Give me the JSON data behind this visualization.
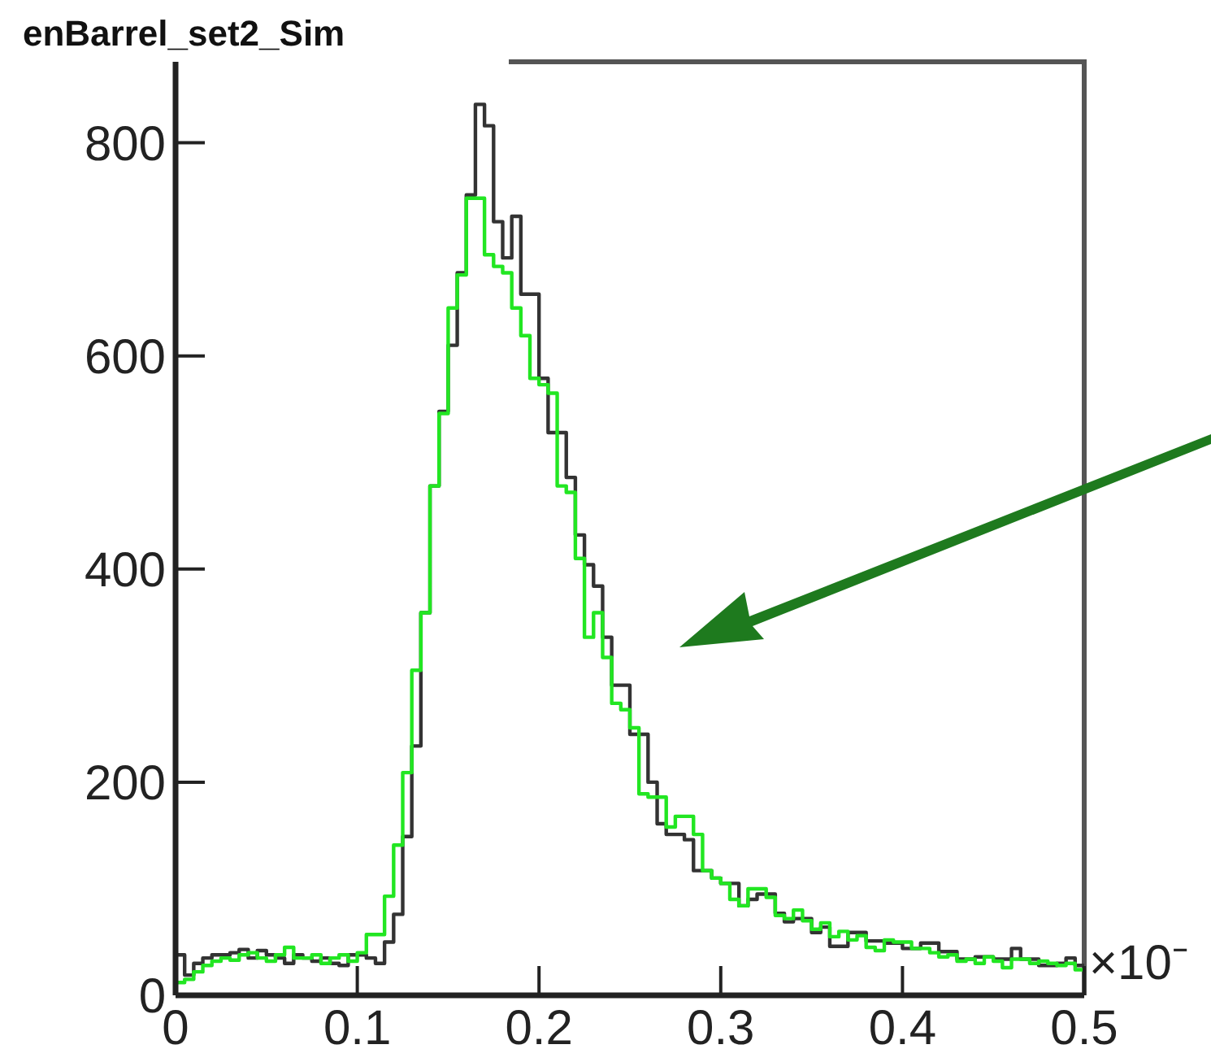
{
  "chart_data": {
    "type": "histogram",
    "title": "enBarrel_set2_Sim",
    "annotations": [
      "×10⁻"
    ],
    "bins": [
      0,
      0.005,
      0.01,
      0.015,
      0.02,
      0.025,
      0.03,
      0.035,
      0.04,
      0.045,
      0.05,
      0.055,
      0.06,
      0.065,
      0.07,
      0.075,
      0.08,
      0.085,
      0.09,
      0.095,
      0.1,
      0.105,
      0.11,
      0.115,
      0.12,
      0.125,
      0.13,
      0.135,
      0.14,
      0.145,
      0.15,
      0.155,
      0.16,
      0.165,
      0.17,
      0.175,
      0.18,
      0.185,
      0.19,
      0.195,
      0.2,
      0.205,
      0.21,
      0.215,
      0.22,
      0.225,
      0.23,
      0.235,
      0.24,
      0.245,
      0.25,
      0.255,
      0.26,
      0.265,
      0.27,
      0.275,
      0.28,
      0.285,
      0.29,
      0.295,
      0.3,
      0.305,
      0.31,
      0.315,
      0.32,
      0.325,
      0.33,
      0.335,
      0.34,
      0.345,
      0.35,
      0.355,
      0.36,
      0.365,
      0.37,
      0.375,
      0.38,
      0.385,
      0.39,
      0.395,
      0.4,
      0.405,
      0.41,
      0.415,
      0.42,
      0.425,
      0.43,
      0.435,
      0.44,
      0.445,
      0.45,
      0.455,
      0.46,
      0.465,
      0.47,
      0.475,
      0.48,
      0.485,
      0.49,
      0.495,
      0.5
    ],
    "series": [
      {
        "color": "#333333",
        "values": [
          38,
          19,
          30,
          35,
          38,
          38,
          40,
          43,
          35,
          42,
          38,
          35,
          30,
          38,
          35,
          32,
          35,
          30,
          28,
          38,
          38,
          35,
          30,
          50,
          76,
          149,
          234,
          359,
          478,
          548,
          610,
          678,
          751,
          836,
          816,
          726,
          692,
          731,
          658,
          658,
          579,
          528,
          528,
          486,
          432,
          404,
          384,
          336,
          291,
          291,
          245,
          245,
          200,
          161,
          151,
          151,
          146,
          117,
          117,
          110,
          105,
          105,
          84,
          90,
          95,
          95,
          77,
          69,
          72,
          72,
          59,
          64,
          46,
          46,
          59,
          59,
          51,
          51,
          49,
          49,
          44,
          44,
          49,
          49,
          41,
          41,
          34,
          34,
          36,
          36,
          34,
          34,
          44,
          34,
          34,
          28,
          28,
          30,
          35,
          28
        ]
      },
      {
        "color": "#22e622",
        "values": [
          12,
          15,
          22,
          28,
          32,
          35,
          33,
          38,
          40,
          35,
          32,
          38,
          45,
          35,
          35,
          38,
          30,
          35,
          38,
          32,
          40,
          57,
          57,
          93,
          141,
          209,
          305,
          359,
          478,
          546,
          645,
          676,
          748,
          748,
          695,
          684,
          678,
          645,
          619,
          579,
          573,
          565,
          478,
          472,
          410,
          336,
          359,
          317,
          274,
          268,
          251,
          189,
          186,
          186,
          158,
          168,
          168,
          151,
          117,
          110,
          105,
          90,
          84,
          100,
          100,
          92,
          75,
          72,
          80,
          70,
          62,
          68,
          55,
          60,
          52,
          56,
          45,
          42,
          52,
          50,
          50,
          44,
          44,
          40,
          36,
          38,
          32,
          34,
          30,
          36,
          32,
          26,
          34,
          34,
          30,
          32,
          30,
          28,
          30,
          24
        ]
      }
    ],
    "xlim": [
      0,
      0.5
    ],
    "ylim": [
      0,
      876
    ],
    "xticks": [
      0,
      0.1,
      0.2,
      0.3,
      0.4,
      0.5
    ],
    "yticks": [
      0,
      200,
      400,
      600,
      800
    ],
    "grid": false
  }
}
